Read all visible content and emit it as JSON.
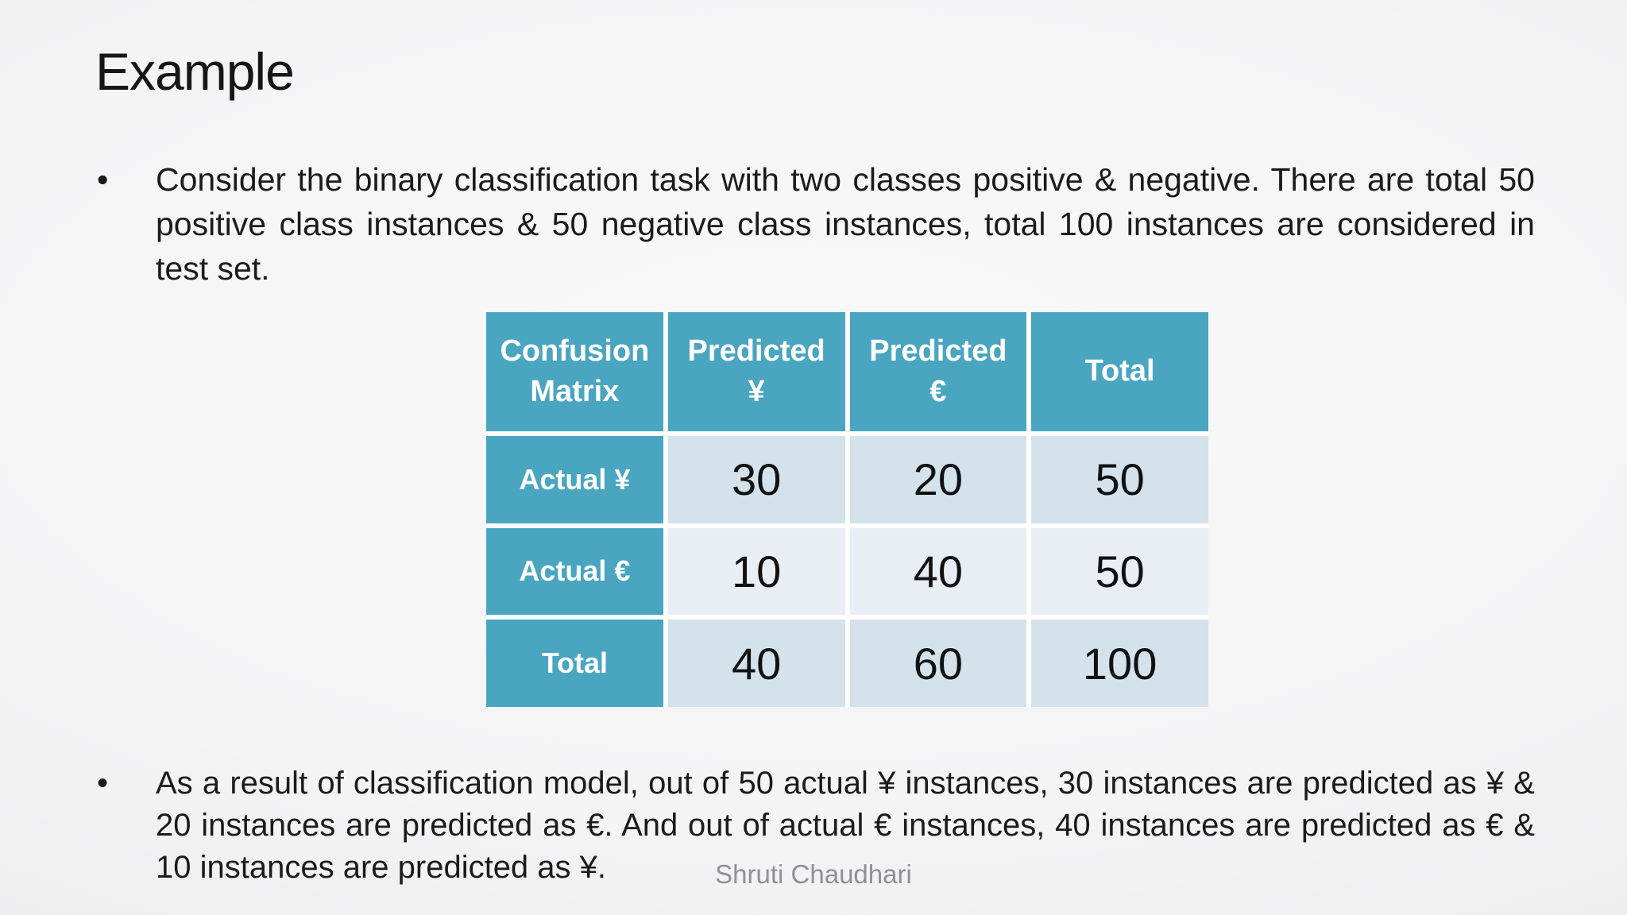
{
  "slide": {
    "title": "Example",
    "bullet_marker": "•",
    "bullet1": "Consider the binary classification task with two classes positive & negative. There are total 50 positive class instances & 50 negative class instances, total 100 instances are considered in test set.",
    "bullet2": "As a result of classification model, out of 50 actual ¥ instances, 30 instances are predicted as ¥ & 20 instances are predicted as €. And out of actual € instances, 40 instances are predicted as € & 10 instances are predicted as ¥.",
    "footer": "Shruti Chaudhari"
  },
  "table": {
    "header": [
      "Confusion Matrix",
      "Predicted ¥",
      "Predicted €",
      "Total"
    ],
    "rows": [
      {
        "label": "Actual ¥",
        "values": [
          "30",
          "20",
          "50"
        ]
      },
      {
        "label": "Actual €",
        "values": [
          "10",
          "40",
          "50"
        ]
      },
      {
        "label": "Total",
        "values": [
          "40",
          "60",
          "100"
        ]
      }
    ],
    "colors": {
      "header_bg": "#49a5c0",
      "header_text": "#ffffff",
      "band_row_bg": "#d3e2eb",
      "light_row_bg": "#e9eef5",
      "body_text": "#111111"
    }
  }
}
